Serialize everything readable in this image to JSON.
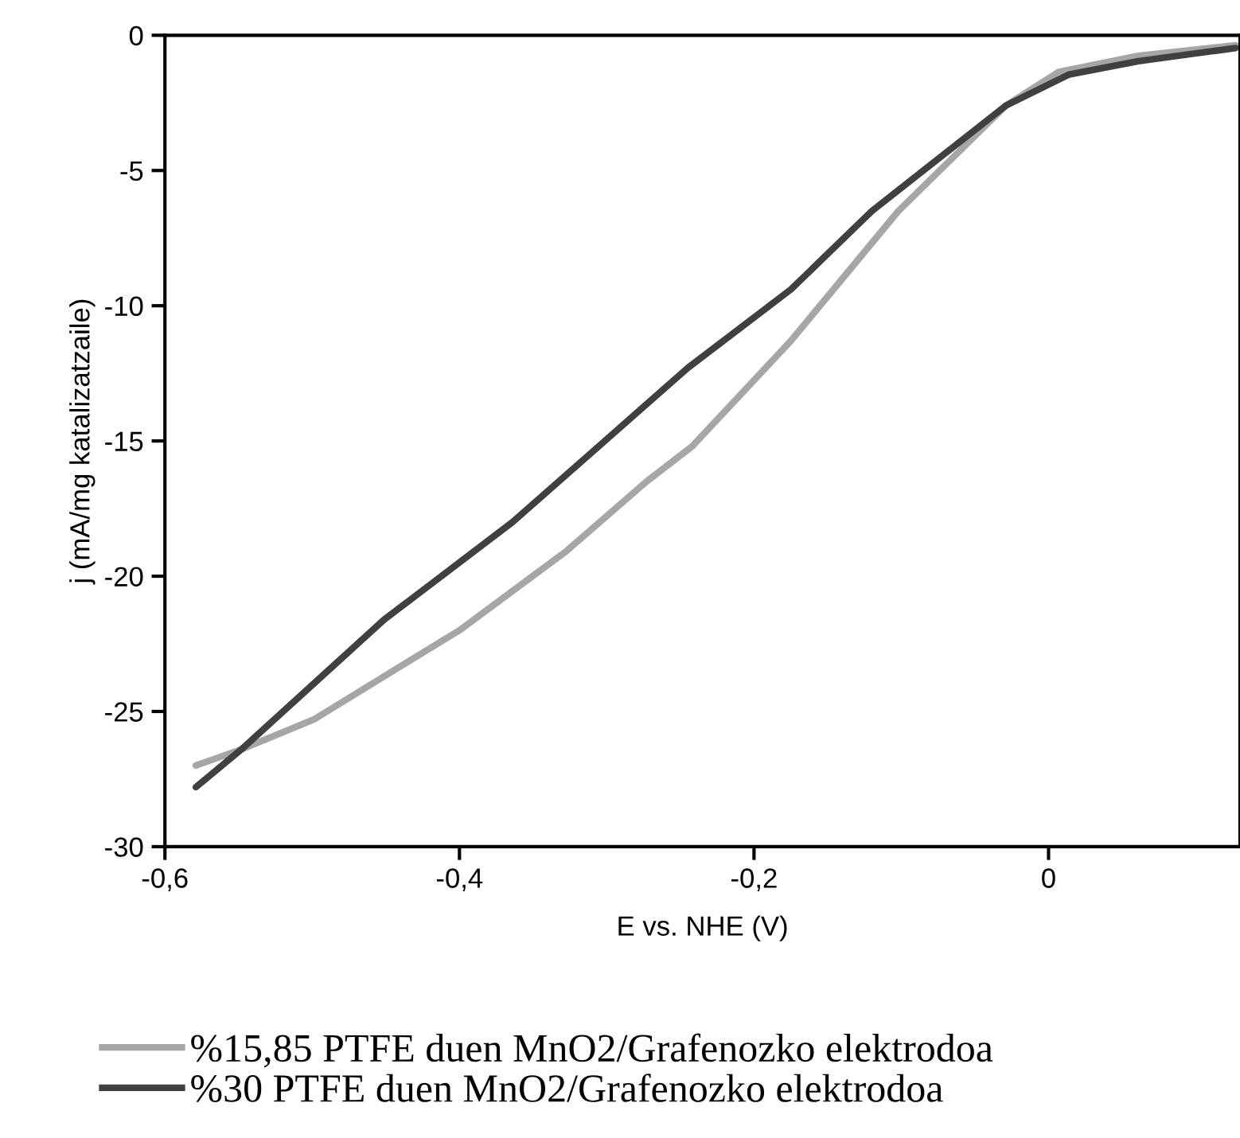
{
  "chart_data": {
    "type": "line",
    "xlabel": "E vs. NHE (V)",
    "ylabel": "j (mA/mg katalizatzaile)",
    "xlim": [
      -0.6,
      0.13
    ],
    "ylim": [
      -30,
      0
    ],
    "xticks": [
      {
        "value": -0.6,
        "label": "-0,6"
      },
      {
        "value": -0.4,
        "label": "-0,4"
      },
      {
        "value": -0.2,
        "label": "-0,2"
      },
      0
    ],
    "yticks": [
      {
        "value": -30,
        "label": "-30"
      },
      {
        "value": -25,
        "label": "-25"
      },
      {
        "value": -20,
        "label": "-20"
      },
      {
        "value": -15,
        "label": "-15"
      },
      {
        "value": -10,
        "label": "-10"
      },
      {
        "value": -5,
        "label": "-5"
      },
      0
    ],
    "grid": false,
    "legend": "bottom",
    "marker": "none",
    "line_style": "solid",
    "series": [
      {
        "name": "%15,85 PTFE duen MnO2/Grafenozko elektrodoa",
        "color": "#a6a6a6",
        "x": [
          -0.579,
          -0.548,
          -0.499,
          -0.4,
          -0.328,
          -0.273,
          -0.242,
          -0.175,
          -0.102,
          -0.029,
          0.007,
          0.061,
          0.127
        ],
        "values": [
          -27.0,
          -26.4,
          -25.3,
          -22.0,
          -19.1,
          -16.5,
          -15.2,
          -11.3,
          -6.5,
          -2.6,
          -1.35,
          -0.76,
          -0.37
        ]
      },
      {
        "name": "%30 PTFE duen MnO2/Grafenozko elektrodoa",
        "color": "#404040",
        "x": [
          -0.579,
          -0.548,
          -0.451,
          -0.364,
          -0.245,
          -0.175,
          -0.12,
          -0.029,
          0.014,
          0.061,
          0.127
        ],
        "values": [
          -27.8,
          -26.4,
          -21.6,
          -18.0,
          -12.3,
          -9.4,
          -6.5,
          -2.6,
          -1.45,
          -0.96,
          -0.47
        ]
      }
    ]
  }
}
